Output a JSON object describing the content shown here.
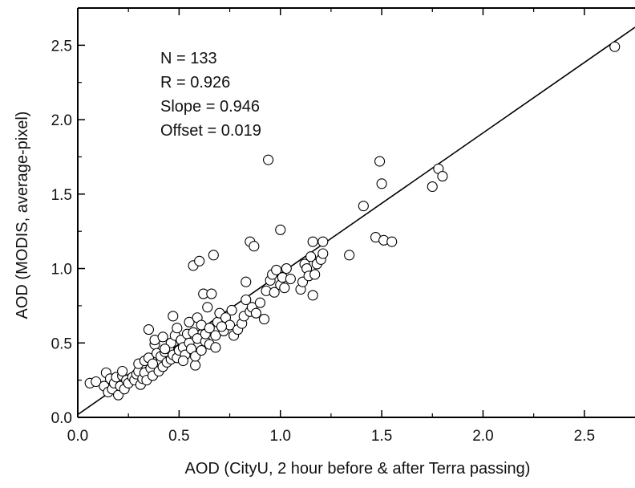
{
  "chart_data": {
    "type": "scatter",
    "xlabel": "AOD (CityU, 2 hour before & after Terra passing)",
    "ylabel": "AOD (MODIS, average-pixel)",
    "xlim": [
      0,
      2.75
    ],
    "ylim": [
      0,
      2.75
    ],
    "x_ticks": [
      "0.0",
      "0.5",
      "1.0",
      "1.5",
      "2.0",
      "2.5"
    ],
    "y_ticks": [
      "0.0",
      "0.5",
      "1.0",
      "1.5",
      "2.0",
      "2.5"
    ],
    "grid": false,
    "marker": "open-circle",
    "stats": {
      "n": "N = 133",
      "r": "R = 0.926",
      "slope": "Slope = 0.946",
      "offset": "Offset = 0.019"
    },
    "fit_line": {
      "slope": 0.946,
      "intercept": 0.019
    },
    "points": [
      [
        0.06,
        0.23
      ],
      [
        0.09,
        0.24
      ],
      [
        0.13,
        0.21
      ],
      [
        0.14,
        0.3
      ],
      [
        0.15,
        0.17
      ],
      [
        0.16,
        0.26
      ],
      [
        0.17,
        0.19
      ],
      [
        0.18,
        0.23
      ],
      [
        0.19,
        0.27
      ],
      [
        0.2,
        0.15
      ],
      [
        0.21,
        0.21
      ],
      [
        0.22,
        0.28
      ],
      [
        0.22,
        0.31
      ],
      [
        0.23,
        0.19
      ],
      [
        0.24,
        0.25
      ],
      [
        0.25,
        0.23
      ],
      [
        0.27,
        0.27
      ],
      [
        0.28,
        0.25
      ],
      [
        0.29,
        0.29
      ],
      [
        0.3,
        0.31
      ],
      [
        0.3,
        0.36
      ],
      [
        0.31,
        0.22
      ],
      [
        0.32,
        0.26
      ],
      [
        0.33,
        0.3
      ],
      [
        0.33,
        0.38
      ],
      [
        0.34,
        0.25
      ],
      [
        0.35,
        0.4
      ],
      [
        0.35,
        0.59
      ],
      [
        0.36,
        0.33
      ],
      [
        0.37,
        0.28
      ],
      [
        0.37,
        0.36
      ],
      [
        0.38,
        0.49
      ],
      [
        0.38,
        0.52
      ],
      [
        0.39,
        0.43
      ],
      [
        0.4,
        0.31
      ],
      [
        0.41,
        0.41
      ],
      [
        0.42,
        0.34
      ],
      [
        0.42,
        0.54
      ],
      [
        0.43,
        0.44
      ],
      [
        0.44,
        0.37
      ],
      [
        0.45,
        0.46
      ],
      [
        0.46,
        0.39
      ],
      [
        0.46,
        0.5
      ],
      [
        0.47,
        0.42
      ],
      [
        0.47,
        0.68
      ],
      [
        0.48,
        0.55
      ],
      [
        0.49,
        0.4
      ],
      [
        0.49,
        0.6
      ],
      [
        0.5,
        0.45
      ],
      [
        0.51,
        0.52
      ],
      [
        0.52,
        0.47
      ],
      [
        0.53,
        0.42
      ],
      [
        0.54,
        0.56
      ],
      [
        0.55,
        0.5
      ],
      [
        0.55,
        0.64
      ],
      [
        0.56,
        0.46
      ],
      [
        0.57,
        0.57
      ],
      [
        0.57,
        1.02
      ],
      [
        0.58,
        0.35
      ],
      [
        0.58,
        0.41
      ],
      [
        0.59,
        0.53
      ],
      [
        0.59,
        0.67
      ],
      [
        0.6,
        1.05
      ],
      [
        0.61,
        0.45
      ],
      [
        0.61,
        0.62
      ],
      [
        0.62,
        0.83
      ],
      [
        0.63,
        0.51
      ],
      [
        0.63,
        0.56
      ],
      [
        0.64,
        0.74
      ],
      [
        0.65,
        0.49
      ],
      [
        0.65,
        0.6
      ],
      [
        0.66,
        0.83
      ],
      [
        0.67,
        1.09
      ],
      [
        0.68,
        0.55
      ],
      [
        0.69,
        0.64
      ],
      [
        0.7,
        0.7
      ],
      [
        0.72,
        0.58
      ],
      [
        0.73,
        0.67
      ],
      [
        0.75,
        0.62
      ],
      [
        0.76,
        0.72
      ],
      [
        0.77,
        0.55
      ],
      [
        0.79,
        0.59
      ],
      [
        0.81,
        0.63
      ],
      [
        0.82,
        0.68
      ],
      [
        0.83,
        0.91
      ],
      [
        0.83,
        0.79
      ],
      [
        0.85,
        0.71
      ],
      [
        0.85,
        1.18
      ],
      [
        0.86,
        0.74
      ],
      [
        0.87,
        1.15
      ],
      [
        0.92,
        0.66
      ],
      [
        0.93,
        0.85
      ],
      [
        0.94,
        1.73
      ],
      [
        0.95,
        0.92
      ],
      [
        0.96,
        0.96
      ],
      [
        0.97,
        0.84
      ],
      [
        0.98,
        0.99
      ],
      [
        1.0,
        1.26
      ],
      [
        1.0,
        0.89
      ],
      [
        1.01,
        0.94
      ],
      [
        1.02,
        0.87
      ],
      [
        1.03,
        1.0
      ],
      [
        1.1,
        0.86
      ],
      [
        1.11,
        0.91
      ],
      [
        1.12,
        1.03
      ],
      [
        1.13,
        1.0
      ],
      [
        1.14,
        0.95
      ],
      [
        1.15,
        1.08
      ],
      [
        1.16,
        0.82
      ],
      [
        1.16,
        1.18
      ],
      [
        1.17,
        0.96
      ],
      [
        1.18,
        1.03
      ],
      [
        1.2,
        1.06
      ],
      [
        1.21,
        1.1
      ],
      [
        1.21,
        1.18
      ],
      [
        1.34,
        1.09
      ],
      [
        1.41,
        1.42
      ],
      [
        1.47,
        1.21
      ],
      [
        1.49,
        1.72
      ],
      [
        1.5,
        1.57
      ],
      [
        1.51,
        1.19
      ],
      [
        1.55,
        1.18
      ],
      [
        1.75,
        1.55
      ],
      [
        1.78,
        1.67
      ],
      [
        1.8,
        1.62
      ],
      [
        2.65,
        2.49
      ],
      [
        0.43,
        0.46
      ],
      [
        0.52,
        0.38
      ],
      [
        0.68,
        0.47
      ],
      [
        0.71,
        0.61
      ],
      [
        0.88,
        0.7
      ],
      [
        0.9,
        0.77
      ],
      [
        1.05,
        0.93
      ]
    ]
  }
}
